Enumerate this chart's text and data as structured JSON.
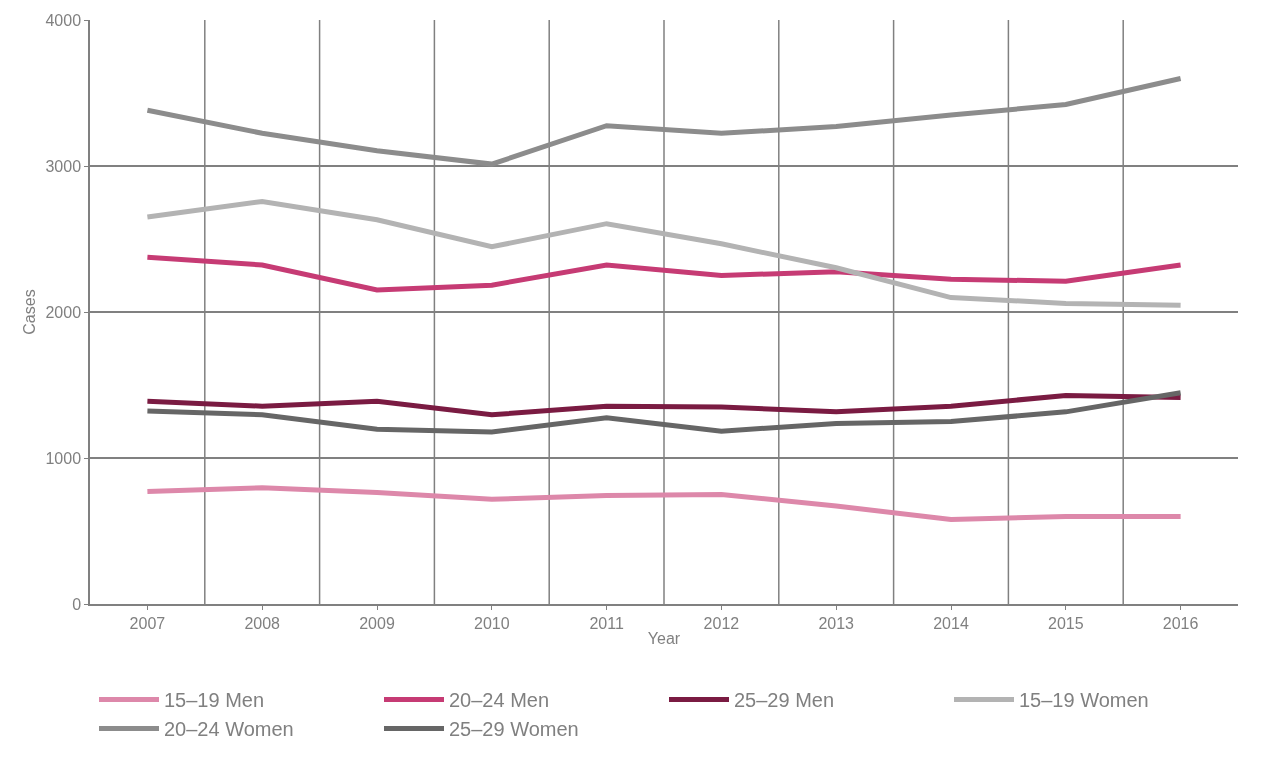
{
  "chart_data": {
    "type": "line",
    "xlabel": "Year",
    "ylabel": "Cases",
    "categories": [
      "2007",
      "2008",
      "2009",
      "2010",
      "2011",
      "2012",
      "2013",
      "2014",
      "2015",
      "2016"
    ],
    "ylim": [
      0,
      4000
    ],
    "yticks": [
      0,
      1000,
      2000,
      3000,
      4000
    ],
    "grid": true,
    "legend": "bottom",
    "marker": "none",
    "line_style": "solid",
    "series": [
      {
        "name": "15–19 Men",
        "color": "#dd88aa",
        "values": [
          770,
          796,
          763,
          717,
          743,
          750,
          671,
          579,
          599,
          599
        ]
      },
      {
        "name": "20–24 Men",
        "color": "#c63b74",
        "values": [
          2375,
          2322,
          2151,
          2184,
          2322,
          2250,
          2276,
          2224,
          2211,
          2322
        ]
      },
      {
        "name": "25–29 Men",
        "color": "#7a1b42",
        "values": [
          1388,
          1355,
          1388,
          1296,
          1355,
          1349,
          1316,
          1355,
          1428,
          1414
        ]
      },
      {
        "name": "15–19 Women",
        "color": "#b3b3b3",
        "values": [
          2651,
          2757,
          2632,
          2447,
          2605,
          2467,
          2303,
          2099,
          2059,
          2046
        ]
      },
      {
        "name": "20–24 Women",
        "color": "#8c8c8c",
        "values": [
          3382,
          3224,
          3105,
          3013,
          3276,
          3224,
          3270,
          3349,
          3421,
          3599
        ]
      },
      {
        "name": "25–29 Women",
        "color": "#666666",
        "values": [
          1322,
          1296,
          1197,
          1178,
          1276,
          1184,
          1237,
          1250,
          1316,
          1447
        ]
      }
    ]
  }
}
